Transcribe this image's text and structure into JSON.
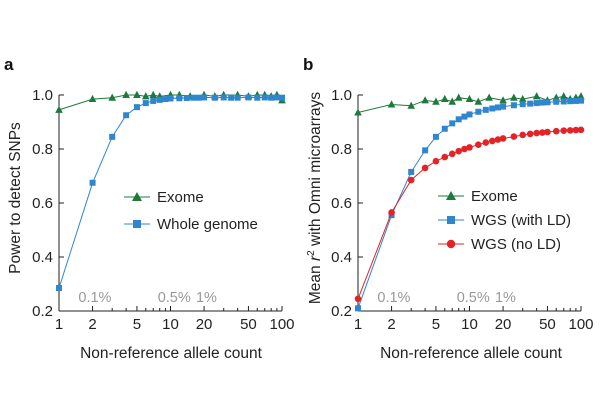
{
  "chart_data": [
    {
      "panel": "a",
      "type": "line",
      "xscale": "log",
      "xlim": [
        1,
        100
      ],
      "ylim": [
        0.2,
        1.0
      ],
      "xticks": [
        1,
        2,
        5,
        10,
        20,
        50,
        100
      ],
      "xtick_labels": [
        "1",
        "2",
        "5",
        "10",
        "20",
        "50",
        "100"
      ],
      "yticks": [
        0.2,
        0.4,
        0.6,
        0.8,
        1.0
      ],
      "ytick_labels": [
        "0.2",
        "0.4",
        "0.6",
        "0.8",
        "1.0"
      ],
      "xlabel": "Non-reference allele count",
      "ylabel": "Power to detect SNPs",
      "legend_position": "center-right",
      "grid": false,
      "annotations": [
        {
          "text": "0.1%",
          "x": 2.1
        },
        {
          "text": "0.5%",
          "x": 10.8
        },
        {
          "text": "1%",
          "x": 21
        }
      ],
      "series": [
        {
          "name": "Exome",
          "color": "#1e7a3c",
          "marker": "triangle",
          "x": [
            1,
            2,
            3,
            4,
            5,
            6,
            7,
            8,
            10,
            12,
            15,
            20,
            25,
            30,
            40,
            50,
            60,
            70,
            80,
            90,
            100
          ],
          "y": [
            0.945,
            0.985,
            0.99,
            1.0,
            1.0,
            0.995,
            1.0,
            0.995,
            1.0,
            1.0,
            0.995,
            1.0,
            0.995,
            1.0,
            1.0,
            0.995,
            1.0,
            1.0,
            0.995,
            1.0,
            0.98
          ]
        },
        {
          "name": "Whole genome",
          "color": "#2f86cf",
          "marker": "square",
          "x": [
            1,
            2,
            3,
            4,
            5,
            6,
            7,
            8,
            9,
            10,
            12,
            14,
            16,
            18,
            20,
            25,
            30,
            35,
            40,
            50,
            60,
            70,
            80,
            90,
            100
          ],
          "y": [
            0.285,
            0.675,
            0.845,
            0.925,
            0.955,
            0.97,
            0.978,
            0.982,
            0.985,
            0.987,
            0.988,
            0.989,
            0.99,
            0.99,
            0.991,
            0.99,
            0.991,
            0.99,
            0.99,
            0.991,
            0.99,
            0.991,
            0.99,
            0.991,
            0.99
          ]
        }
      ]
    },
    {
      "panel": "b",
      "type": "line",
      "xscale": "log",
      "xlim": [
        1,
        100
      ],
      "ylim": [
        0.2,
        1.0
      ],
      "xticks": [
        1,
        2,
        5,
        10,
        20,
        50,
        100
      ],
      "xtick_labels": [
        "1",
        "2",
        "5",
        "10",
        "20",
        "50",
        "100"
      ],
      "yticks": [
        0.2,
        0.4,
        0.6,
        0.8,
        1.0
      ],
      "ytick_labels": [
        "0.2",
        "0.4",
        "0.6",
        "0.8",
        "1.0"
      ],
      "xlabel": "Non-reference allele count",
      "ylabel_prefix": "Mean ",
      "ylabel_italic": "r",
      "ylabel_sup": "2",
      "ylabel_suffix": " with Omni microarrays",
      "legend_position": "center-right",
      "grid": false,
      "annotations": [
        {
          "text": "0.1%",
          "x": 2.1
        },
        {
          "text": "0.5%",
          "x": 10.8
        },
        {
          "text": "1%",
          "x": 21
        }
      ],
      "series": [
        {
          "name": "Exome",
          "color": "#1e7a3c",
          "marker": "triangle",
          "x": [
            1,
            2,
            3,
            4,
            5,
            6,
            7,
            8,
            10,
            12,
            15,
            20,
            25,
            30,
            40,
            50,
            60,
            70,
            80,
            90,
            100
          ],
          "y": [
            0.935,
            0.965,
            0.96,
            0.98,
            0.975,
            0.985,
            0.975,
            0.99,
            0.985,
            0.975,
            0.99,
            0.98,
            0.99,
            0.985,
            0.995,
            0.98,
            0.99,
            0.995,
            0.985,
            0.99,
            0.995
          ]
        },
        {
          "name": "WGS (with LD)",
          "color": "#2f86cf",
          "marker": "square",
          "x": [
            1,
            2,
            3,
            4,
            5,
            6,
            7,
            8,
            9,
            10,
            12,
            14,
            16,
            18,
            20,
            25,
            30,
            35,
            40,
            45,
            50,
            60,
            70,
            80,
            90,
            100
          ],
          "y": [
            0.21,
            0.555,
            0.715,
            0.795,
            0.845,
            0.875,
            0.895,
            0.91,
            0.92,
            0.928,
            0.938,
            0.945,
            0.95,
            0.954,
            0.957,
            0.962,
            0.966,
            0.968,
            0.97,
            0.972,
            0.973,
            0.975,
            0.976,
            0.977,
            0.978,
            0.979
          ]
        },
        {
          "name": "WGS (no LD)",
          "color": "#e32326",
          "marker": "circle",
          "x": [
            1,
            2,
            3,
            4,
            5,
            6,
            7,
            8,
            9,
            10,
            12,
            14,
            16,
            18,
            20,
            25,
            30,
            35,
            40,
            45,
            50,
            60,
            70,
            80,
            90,
            100
          ],
          "y": [
            0.245,
            0.565,
            0.685,
            0.73,
            0.755,
            0.77,
            0.782,
            0.792,
            0.8,
            0.806,
            0.816,
            0.824,
            0.83,
            0.835,
            0.839,
            0.846,
            0.852,
            0.856,
            0.859,
            0.861,
            0.863,
            0.866,
            0.868,
            0.869,
            0.87,
            0.871
          ]
        }
      ]
    }
  ]
}
